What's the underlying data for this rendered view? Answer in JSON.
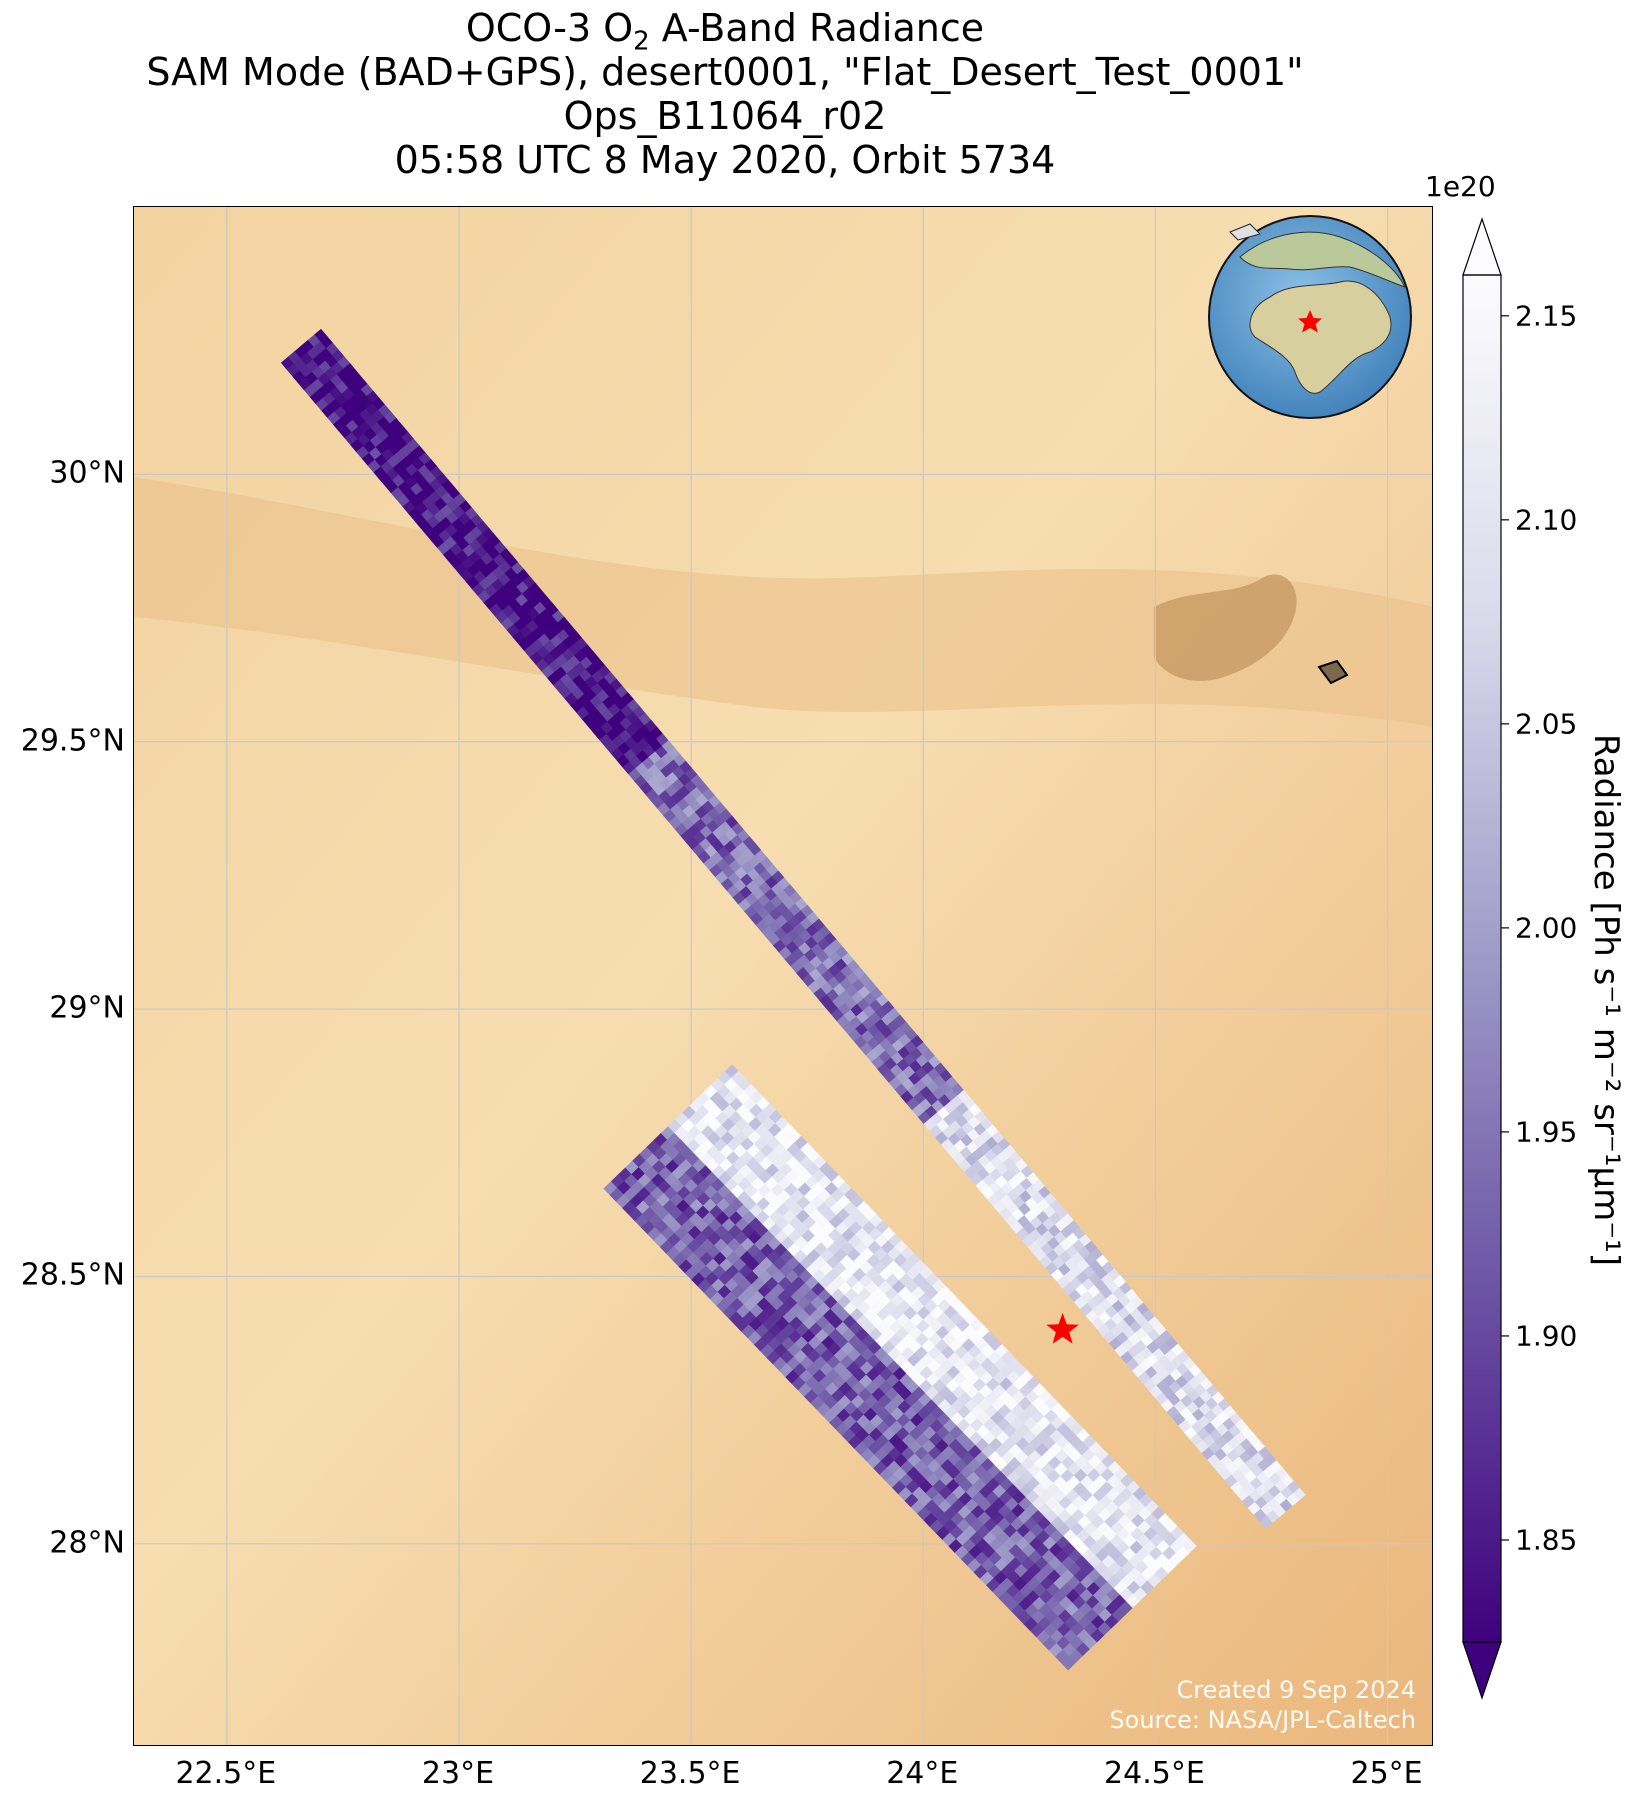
{
  "title": {
    "line1_prefix": "OCO-3 O",
    "line1_sub": "2",
    "line1_suffix": " A-Band Radiance",
    "line2": "SAM Mode (BAD+GPS), desert0001, \"Flat_Desert_Test_0001\"",
    "line3": "Ops_B11064_r02",
    "line4": "05:58 UTC 8 May 2020, Orbit 5734"
  },
  "map": {
    "lon_ticks": [
      "22.5°E",
      "23°E",
      "23.5°E",
      "24°E",
      "24.5°E",
      "25°E"
    ],
    "lon_values": [
      22.5,
      23.0,
      23.5,
      24.0,
      24.5,
      25.0
    ],
    "lat_ticks": [
      "30°N",
      "29.5°N",
      "29°N",
      "28.5°N",
      "28°N"
    ],
    "lat_values": [
      30.0,
      29.5,
      29.0,
      28.5,
      28.0
    ],
    "lon_range": [
      22.3,
      25.1
    ],
    "lat_range": [
      27.62,
      30.5
    ],
    "target": {
      "lon": 24.3,
      "lat": 28.4,
      "color": "#ff0000",
      "icon": "star-icon"
    },
    "swaths": [
      {
        "lon_start": 22.66,
        "lat_start": 30.24,
        "lon_end": 24.78,
        "lat_end": 28.06,
        "cross_width_deg": 0.07
      },
      {
        "lon_start": 23.45,
        "lat_start": 28.78,
        "lon_end": 24.45,
        "lat_end": 27.88,
        "cross_width_deg": 0.24
      }
    ],
    "colors": {
      "desert_light": "#f6dcae",
      "desert_dark": "#e6b176",
      "ocean": "#6ea6d4",
      "land": "#c8c29a",
      "grid": "#c8c8c8"
    }
  },
  "inset": {
    "star_color": "#ff0000",
    "icon": "globe-icon"
  },
  "credit": {
    "line1": "Created 9 Sep 2024",
    "line2": "Source: NASA/JPL-Caltech"
  },
  "colorbar": {
    "exponent": "1e20",
    "ticks": [
      "2.15",
      "2.10",
      "2.05",
      "2.00",
      "1.95",
      "1.90",
      "1.85"
    ],
    "tick_values": [
      2.15,
      2.1,
      2.05,
      2.0,
      1.95,
      1.9,
      1.85
    ],
    "vmin": 1.825,
    "vmax": 2.16,
    "label": "Radiance [Ph s⁻¹ m⁻² sr⁻¹μm⁻¹]",
    "cmap": "Purples_r",
    "color_low": "#3f007d",
    "color_mid": "#9e9ac8",
    "color_high": "#fcfbfd"
  },
  "chart_data": {
    "type": "heatmap",
    "title": "OCO-3 O2 A-Band Radiance",
    "xlabel": "",
    "ylabel": "",
    "x_ticks": [
      "22.5°E",
      "23°E",
      "23.5°E",
      "24°E",
      "24.5°E",
      "25°E"
    ],
    "y_ticks": [
      "30°N",
      "29.5°N",
      "29°N",
      "28.5°N",
      "28°N"
    ],
    "xlim": [
      22.3,
      25.1
    ],
    "ylim": [
      27.62,
      30.5
    ],
    "colorbar_range": [
      1.825,
      2.16
    ],
    "colorbar_scale": "1e20",
    "grid": true
  }
}
